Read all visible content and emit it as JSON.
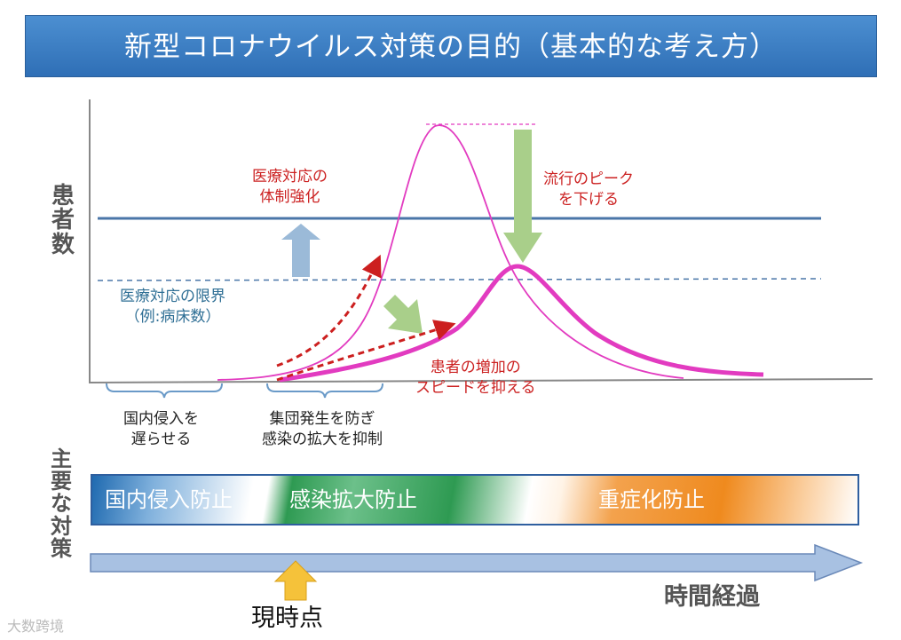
{
  "title": "新型コロナウイルス対策の目的（基本的な考え方）",
  "y_axis_label": [
    "患",
    "者",
    "数"
  ],
  "capacity_raise": [
    "医療対応の",
    "体制強化"
  ],
  "capacity_limit": [
    "医療対応の限界",
    "（例:病床数）"
  ],
  "peak_lower": [
    "流行のピーク",
    "を下げる"
  ],
  "speed_suppress": [
    "患者の増加の",
    "スピードを抑える"
  ],
  "phase_left": [
    "国内侵入を",
    "遅らせる"
  ],
  "phase_middle": [
    "集団発生を防ぎ",
    "感染の拡大を抑制"
  ],
  "measures_label": [
    "主",
    "要",
    "な",
    "対",
    "策"
  ],
  "policy_band": [
    "国内侵入防止",
    "感染拡大防止",
    "重症化防止"
  ],
  "current_point": "現時点",
  "time_elapsed": "時間経過",
  "watermark": "大数跨境",
  "colors": {
    "title_bg": "#3a7cc3",
    "curve": "#e23bc0",
    "capacity_line": "#4a76a8",
    "dashed_arrow": "#cc1f1f",
    "green_arrow": "#a9cf8a",
    "up_arrow": "#9bbad8",
    "time_arrow": "#a8c1e2",
    "now_arrow": "#f5c23a"
  }
}
